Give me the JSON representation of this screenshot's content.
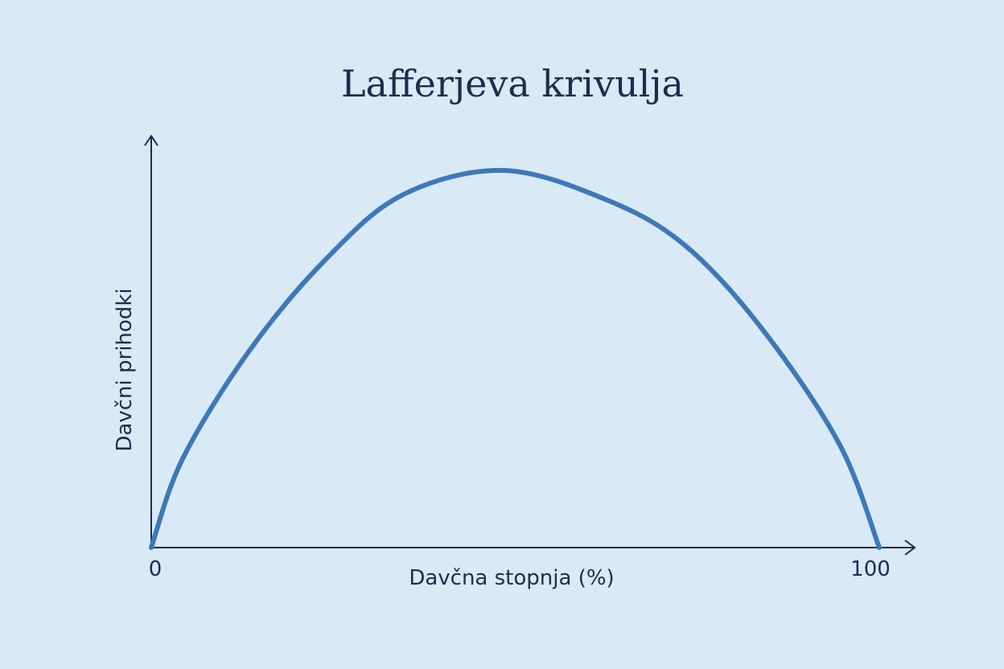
{
  "chart_data": {
    "type": "line",
    "title": "Lafferjeva krivulja",
    "xlabel": "Davčna stopnja (%)",
    "ylabel": "Davčni prihodki",
    "xlim": [
      0,
      100
    ],
    "ylim": [
      0,
      1
    ],
    "x_tick_labels": [
      "0",
      "100"
    ],
    "x_ticks": [
      0,
      100
    ],
    "grid": false,
    "legend": "none",
    "line_color": "#3f78b5",
    "series": [
      {
        "x": [
          0,
          4.3,
          13.4,
          24.0,
          34.6,
          48.5,
          62.8,
          73.4,
          83.9,
          94.5,
          100
        ],
        "y": [
          0,
          0.235,
          0.52,
          0.765,
          0.936,
          1.0,
          0.92,
          0.8,
          0.58,
          0.275,
          0
        ]
      }
    ]
  }
}
